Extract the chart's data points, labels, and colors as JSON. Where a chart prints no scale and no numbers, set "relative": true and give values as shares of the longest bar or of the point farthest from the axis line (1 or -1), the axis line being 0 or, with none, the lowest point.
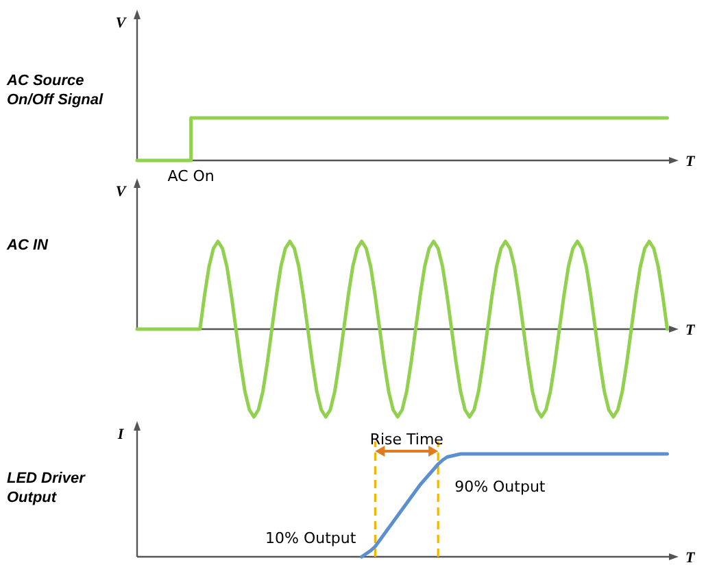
{
  "chart_data": [
    {
      "type": "step",
      "title": "AC Source On/Off Signal",
      "ylabel": "V",
      "xlabel": "T",
      "relative": true,
      "categories": [
        null,
        null,
        null,
        null,
        null,
        null,
        null,
        null,
        null,
        null,
        null,
        null,
        null,
        null,
        null,
        null,
        null,
        null,
        null,
        null,
        null,
        null,
        null,
        null,
        null,
        null,
        null,
        null,
        null,
        null,
        null,
        null,
        null,
        null,
        null,
        null,
        null,
        null,
        null,
        null,
        null,
        null,
        null,
        null,
        null,
        null,
        null,
        null,
        null,
        null,
        null,
        null,
        null,
        null,
        null,
        null,
        null,
        null,
        null,
        null,
        null,
        null,
        null,
        null,
        null,
        null,
        null,
        null,
        null,
        null,
        null,
        null,
        null,
        null,
        null,
        null,
        null,
        null,
        null,
        null,
        null,
        null,
        null,
        null,
        null,
        null,
        null,
        null,
        null,
        null,
        null,
        null,
        null,
        null,
        null,
        null,
        null,
        null,
        null,
        null,
        null,
        null,
        null,
        null,
        null,
        null,
        null,
        null,
        null,
        null,
        null,
        null,
        null,
        null,
        null,
        null,
        null,
        null,
        null,
        null
      ],
      "series": [
        {
          "color": "#92d050",
          "values": [
            0,
            0,
            0,
            0,
            0,
            0,
            0,
            0,
            0,
            0,
            0,
            0,
            1,
            1,
            1,
            1,
            1,
            1,
            1,
            1,
            1,
            1,
            1,
            1,
            1,
            1,
            1,
            1,
            1,
            1,
            1,
            1,
            1,
            1,
            1,
            1,
            1,
            1,
            1,
            1,
            1,
            1,
            1,
            1,
            1,
            1,
            1,
            1,
            1,
            1,
            1,
            1,
            1,
            1,
            1,
            1,
            1,
            1,
            1,
            1,
            1,
            1,
            1,
            1,
            1,
            1,
            1,
            1,
            1,
            1,
            1,
            1,
            1,
            1,
            1,
            1,
            1,
            1,
            1,
            1,
            1,
            1,
            1,
            1,
            1,
            1,
            1,
            1,
            1,
            1,
            1,
            1,
            1,
            1,
            1,
            1,
            1,
            1,
            1,
            1,
            1,
            1,
            1,
            1,
            1,
            1,
            1,
            1,
            1,
            1,
            1,
            1,
            1,
            1,
            1,
            1,
            1,
            1,
            1,
            null
          ]
        }
      ],
      "annotations": [
        "AC On"
      ]
    },
    {
      "type": "line",
      "title": "AC IN",
      "ylabel": "V",
      "xlabel": "T",
      "relative": true,
      "categories": [
        null,
        null,
        null,
        null,
        null,
        null,
        null,
        null,
        null,
        null,
        null,
        null,
        null,
        null,
        null,
        null,
        null,
        null,
        null,
        null,
        null,
        null,
        null,
        null,
        null,
        null,
        null,
        null,
        null,
        null,
        null,
        null,
        null,
        null,
        null,
        null,
        null,
        null,
        null,
        null,
        null,
        null,
        null,
        null,
        null,
        null,
        null,
        null,
        null,
        null,
        null,
        null,
        null,
        null,
        null,
        null,
        null,
        null,
        null,
        null,
        null,
        null,
        null,
        null,
        null,
        null,
        null,
        null,
        null,
        null,
        null,
        null,
        null,
        null,
        null,
        null,
        null,
        null,
        null,
        null,
        null,
        null,
        null,
        null,
        null,
        null,
        null,
        null,
        null,
        null,
        null,
        null,
        null,
        null,
        null,
        null,
        null,
        null,
        null,
        null,
        null,
        null,
        null,
        null,
        null,
        null,
        null,
        null,
        null,
        null,
        null,
        null,
        null,
        null,
        null,
        null,
        null,
        null,
        null,
        null
      ],
      "series": [
        {
          "color": "#92d050",
          "values": [
            0,
            0,
            0,
            0,
            0,
            0,
            0,
            0,
            0,
            0,
            0,
            0,
            0,
            0,
            0,
            0.38,
            0.71,
            0.92,
            1,
            0.92,
            0.71,
            0.38,
            0,
            -0.38,
            -0.71,
            -0.92,
            -1,
            -0.92,
            -0.71,
            -0.38,
            0,
            0.38,
            0.71,
            0.92,
            1,
            0.92,
            0.71,
            0.38,
            0,
            -0.38,
            -0.71,
            -0.92,
            -1,
            -0.92,
            -0.71,
            -0.38,
            0,
            0.38,
            0.71,
            0.92,
            1,
            0.92,
            0.71,
            0.38,
            0,
            -0.38,
            -0.71,
            -0.92,
            -1,
            -0.92,
            -0.71,
            -0.38,
            0,
            0.38,
            0.71,
            0.92,
            1,
            0.92,
            0.71,
            0.38,
            0,
            -0.38,
            -0.71,
            -0.92,
            -1,
            -0.92,
            -0.71,
            -0.38,
            0,
            0.38,
            0.71,
            0.92,
            1,
            0.92,
            0.71,
            0.38,
            0,
            -0.38,
            -0.71,
            -0.92,
            -1,
            -0.92,
            -0.71,
            -0.38,
            0,
            0.38,
            0.71,
            0.92,
            1,
            0.92,
            0.71,
            0.38,
            0,
            -0.38,
            -0.71,
            -0.92,
            -1,
            -0.92,
            -0.71,
            -0.38,
            0,
            0.38,
            0.71,
            0.92,
            1,
            0.92,
            0.71,
            0.38,
            0,
            null
          ]
        }
      ]
    },
    {
      "type": "line",
      "title": "LED Driver Output",
      "ylabel": "I",
      "xlabel": "T",
      "relative": true,
      "categories": [
        null,
        null,
        null,
        null,
        null,
        null,
        null,
        null,
        null,
        null,
        null,
        null,
        null,
        null,
        null,
        null,
        null,
        null,
        null,
        null,
        null,
        null,
        null,
        null,
        null,
        null,
        null,
        null,
        null,
        null,
        null,
        null,
        null,
        null,
        null,
        null,
        null,
        null,
        null,
        null,
        null,
        null,
        null,
        null,
        null,
        null,
        null,
        null,
        null,
        null,
        null,
        null,
        null,
        null,
        null,
        null,
        null,
        null,
        null,
        null,
        null,
        null,
        null,
        null,
        null,
        null,
        null,
        null,
        null,
        null,
        null,
        null,
        null,
        null,
        null,
        null,
        null,
        null,
        null,
        null,
        null,
        null,
        null,
        null,
        null,
        null,
        null,
        null,
        null,
        null,
        null,
        null,
        null,
        null,
        null,
        null,
        null,
        null,
        null,
        null,
        null,
        null,
        null,
        null,
        null,
        null,
        null,
        null,
        null,
        null,
        null,
        null,
        null,
        null,
        null,
        null,
        null,
        null,
        null,
        null
      ],
      "series": [
        {
          "color": "#5b8fd0",
          "values": [
            null,
            null,
            null,
            null,
            null,
            null,
            null,
            null,
            null,
            null,
            null,
            null,
            null,
            null,
            null,
            null,
            null,
            null,
            null,
            null,
            null,
            null,
            null,
            null,
            null,
            null,
            null,
            null,
            null,
            null,
            null,
            null,
            null,
            null,
            null,
            null,
            null,
            null,
            null,
            null,
            null,
            null,
            null,
            null,
            null,
            null,
            null,
            null,
            null,
            null,
            0,
            0.03,
            0.06,
            0.1,
            0.16,
            0.22,
            0.28,
            0.34,
            0.4,
            0.46,
            0.52,
            0.58,
            0.64,
            0.7,
            0.75,
            0.8,
            0.85,
            0.9,
            0.94,
            0.97,
            0.98,
            0.99,
            1,
            1,
            1,
            1,
            1,
            1,
            1,
            1,
            1,
            1,
            1,
            1,
            1,
            1,
            1,
            1,
            1,
            1,
            1,
            1,
            1,
            1,
            1,
            1,
            1,
            1,
            1,
            1,
            1,
            1,
            1,
            1,
            1,
            1,
            1,
            1,
            1,
            1,
            1,
            1,
            1,
            1,
            1,
            1,
            1,
            1,
            1,
            null
          ]
        }
      ],
      "annotations": [
        "Rise Time",
        "10% Output",
        "90% Output"
      ]
    }
  ]
}
